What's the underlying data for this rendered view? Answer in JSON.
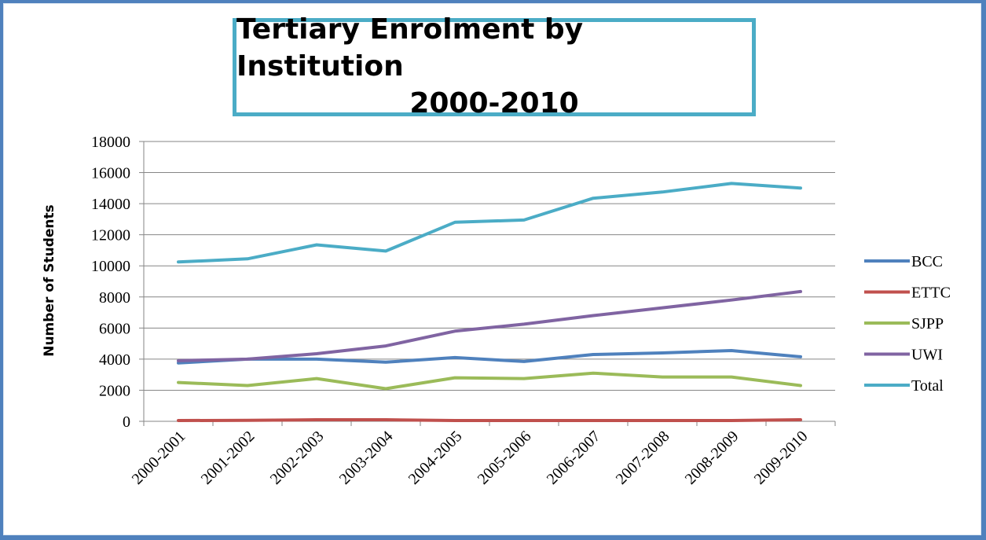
{
  "chart_data": {
    "type": "line",
    "title_line1": "Tertiary Enrolment by Institution",
    "title_line2": "2000-2010",
    "xlabel": "",
    "ylabel": "Number of Students",
    "ylim": [
      0,
      18000
    ],
    "yticks": [
      "0",
      "2000",
      "4000",
      "6000",
      "8000",
      "10000",
      "12000",
      "14000",
      "16000",
      "18000"
    ],
    "grid": true,
    "legend_position": "right",
    "categories": [
      "2000-2001",
      "2001-2002",
      "2002-2003",
      "2003-2004",
      "2004-2005",
      "2005-2006",
      "2006-2007",
      "2007-2008",
      "2008-2009",
      "2009-2010"
    ],
    "series": [
      {
        "name": "BCC",
        "color": "#4f81bd",
        "values": [
          3750,
          4000,
          4000,
          3800,
          4100,
          3850,
          4300,
          4400,
          4550,
          4150
        ]
      },
      {
        "name": "ETTC",
        "color": "#c0504d",
        "values": [
          50,
          60,
          100,
          100,
          50,
          50,
          50,
          50,
          50,
          100
        ]
      },
      {
        "name": "SJPP",
        "color": "#9bbb59",
        "values": [
          2500,
          2300,
          2750,
          2100,
          2800,
          2750,
          3100,
          2850,
          2850,
          2300
        ]
      },
      {
        "name": "UWI",
        "color": "#8064a2",
        "values": [
          3900,
          4000,
          4350,
          4850,
          5800,
          6250,
          6800,
          7300,
          7800,
          8350
        ]
      },
      {
        "name": "Total",
        "color": "#4bacc6",
        "values": [
          10250,
          10450,
          11350,
          10950,
          12800,
          12950,
          14350,
          14750,
          15300,
          15000
        ]
      }
    ]
  }
}
